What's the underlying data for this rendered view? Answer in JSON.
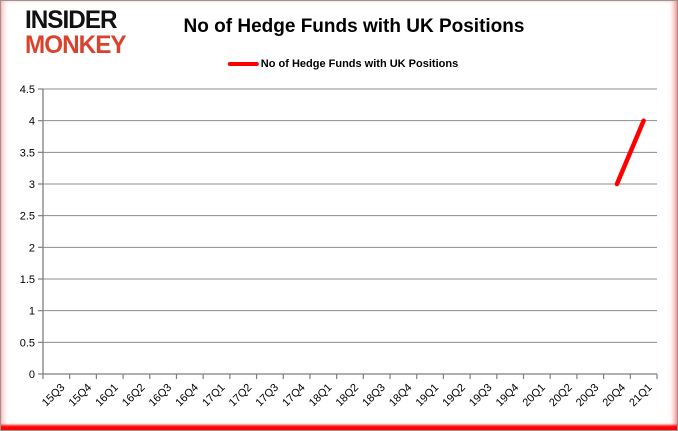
{
  "logo": {
    "line1": "INSIDER",
    "line2": "MONKEY"
  },
  "title": "No of Hedge Funds with UK Positions",
  "legend": {
    "label": "No of Hedge Funds with UK Positions"
  },
  "chart_data": {
    "type": "line",
    "title": "No of Hedge Funds with UK Positions",
    "xlabel": "",
    "ylabel": "",
    "categories": [
      "15Q3",
      "15Q4",
      "16Q1",
      "16Q2",
      "16Q3",
      "16Q4",
      "17Q1",
      "17Q2",
      "17Q3",
      "17Q4",
      "18Q1",
      "18Q2",
      "18Q3",
      "18Q4",
      "19Q1",
      "19Q2",
      "19Q3",
      "19Q4",
      "20Q1",
      "20Q2",
      "20Q3",
      "20Q4",
      "21Q1"
    ],
    "series": [
      {
        "name": "No of Hedge Funds with UK Positions",
        "color": "#ff0000",
        "values": [
          null,
          null,
          null,
          null,
          null,
          null,
          null,
          null,
          null,
          null,
          null,
          null,
          null,
          null,
          null,
          null,
          null,
          null,
          null,
          null,
          null,
          3,
          4
        ]
      }
    ],
    "ylim": [
      0,
      4.5
    ],
    "ytick_step": 0.5,
    "grid": true,
    "legend_position": "top",
    "x_label_rotation": -45
  },
  "colors": {
    "accent_red": "#ff0000",
    "logo_red": "#d9432d",
    "grid": "#8c8c8c",
    "axis": "#7f7f7f",
    "text": "#000000",
    "frame_border": "#969696"
  }
}
